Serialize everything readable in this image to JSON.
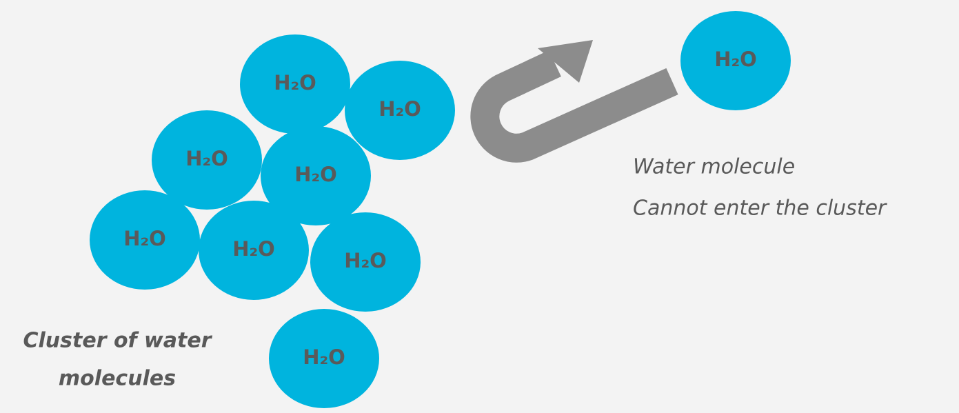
{
  "molecules": [
    {
      "label": "H₂O"
    },
    {
      "label": "H₂O"
    },
    {
      "label": "H₂O"
    },
    {
      "label": "H₂O"
    },
    {
      "label": "H₂O"
    },
    {
      "label": "H₂O"
    },
    {
      "label": "H₂O"
    },
    {
      "label": "H₂O"
    },
    {
      "label": "H₂O"
    }
  ],
  "single_caption": {
    "lines": [
      "Water molecule",
      "Cannot enter the cluster"
    ]
  },
  "cluster_caption": {
    "lines": [
      "Cluster of water",
      "molecules"
    ]
  }
}
